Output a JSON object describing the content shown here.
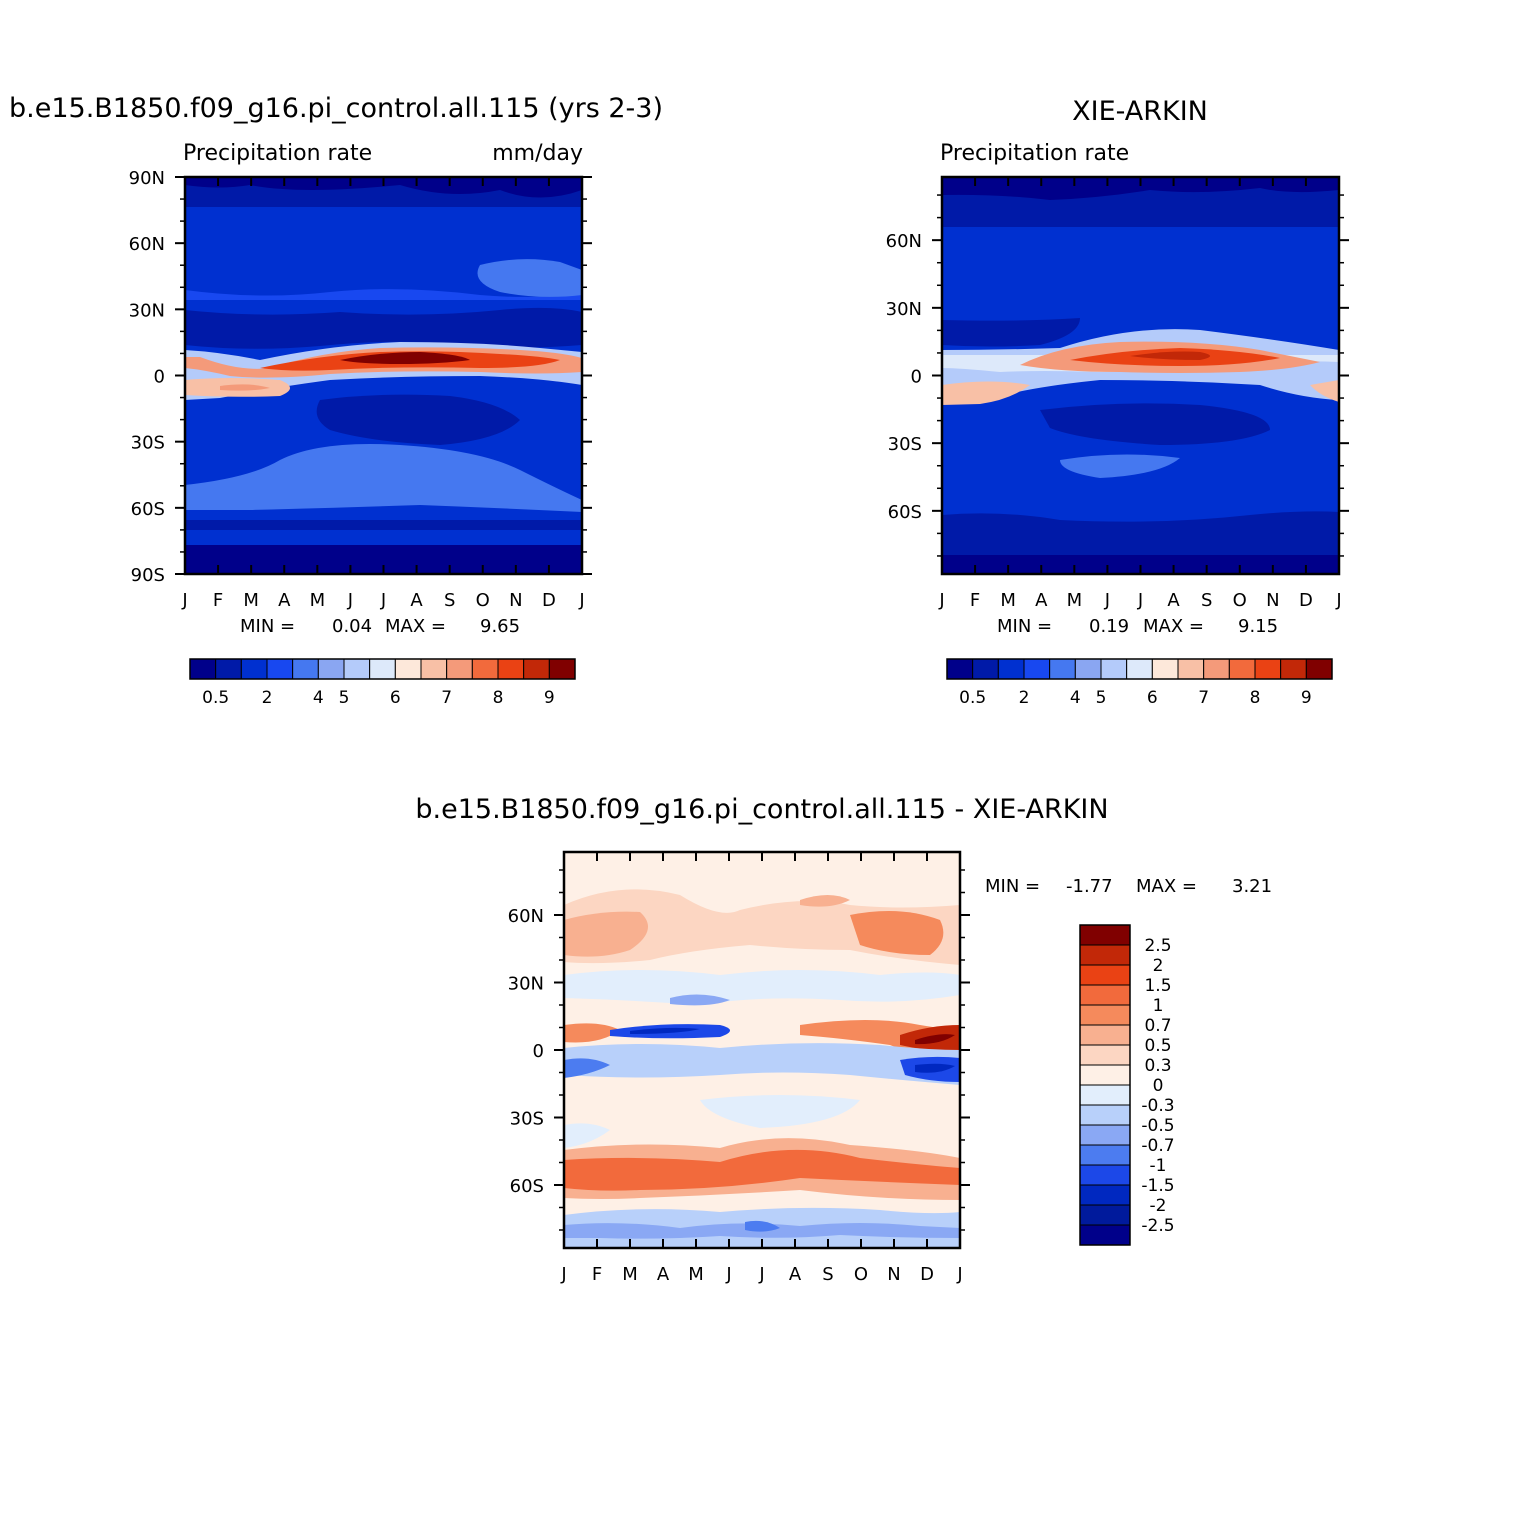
{
  "chart_data": [
    {
      "type": "heatmap",
      "title": "b.e15.B1850.f09_g16.pi_control.all.115 (yrs 2-3)",
      "subtitle_left": "Precipitation rate",
      "subtitle_right": "mm/day",
      "x_tick_labels": [
        "J",
        "F",
        "M",
        "A",
        "M",
        "J",
        "J",
        "A",
        "S",
        "O",
        "N",
        "D",
        "J"
      ],
      "y_tick_labels": [
        "90N",
        "60N",
        "30N",
        "0",
        "30S",
        "60S",
        "90S"
      ],
      "y_tick_values": [
        90,
        60,
        30,
        0,
        -30,
        -60,
        -90
      ],
      "ylim": [
        -90,
        90
      ],
      "min_label": "MIN =",
      "min_value": "0.04",
      "max_label": "MAX =",
      "max_value": "9.65",
      "colorbar_labels": [
        "0.5",
        "2",
        "4",
        "5",
        "6",
        "7",
        "8",
        "9"
      ],
      "palette": [
        "#00008a",
        "#001aa8",
        "#0030d0",
        "#1848f0",
        "#4578f0",
        "#8aa6f2",
        "#b4cbfa",
        "#dde9fa",
        "#fde8da",
        "#f8c0a6",
        "#f49a7a",
        "#f26a3c",
        "#ea4214",
        "#c22808",
        "#800000"
      ],
      "bands": [
        {
          "lat": 80,
          "value": 0.3
        },
        {
          "lat": 60,
          "value": 1.2
        },
        {
          "lat": 40,
          "value": 2.0
        },
        {
          "lat": 15,
          "value": 1.8
        },
        {
          "lat": 7,
          "value": 8.0,
          "seasonal_peak": "Jul-Aug"
        },
        {
          "lat": -7,
          "value": 6.0,
          "seasonal_peak": "Feb-Mar"
        },
        {
          "lat": -20,
          "value": 1.2
        },
        {
          "lat": -45,
          "value": 2.5
        },
        {
          "lat": -75,
          "value": 0.2
        }
      ]
    },
    {
      "type": "heatmap",
      "title": "XIE-ARKIN",
      "subtitle_left": "Precipitation rate",
      "x_tick_labels": [
        "J",
        "F",
        "M",
        "A",
        "M",
        "J",
        "J",
        "A",
        "S",
        "O",
        "N",
        "D",
        "J"
      ],
      "y_tick_labels": [
        "60N",
        "30N",
        "0",
        "30S",
        "60S"
      ],
      "y_tick_values": [
        60,
        30,
        0,
        -30,
        -60
      ],
      "ylim": [
        -88,
        88
      ],
      "min_label": "MIN =",
      "min_value": "0.19",
      "max_label": "MAX =",
      "max_value": "9.15",
      "colorbar_labels": [
        "0.5",
        "2",
        "4",
        "5",
        "6",
        "7",
        "8",
        "9"
      ],
      "palette": [
        "#00008a",
        "#001aa8",
        "#0030d0",
        "#1848f0",
        "#4578f0",
        "#8aa6f2",
        "#b4cbfa",
        "#dde9fa",
        "#fde8da",
        "#f8c0a6",
        "#f49a7a",
        "#f26a3c",
        "#ea4214",
        "#c22808",
        "#800000"
      ],
      "bands": [
        {
          "lat": 80,
          "value": 0.3
        },
        {
          "lat": 60,
          "value": 1.5
        },
        {
          "lat": 35,
          "value": 2.0
        },
        {
          "lat": 15,
          "value": 1.5
        },
        {
          "lat": 7,
          "value": 7.5,
          "seasonal_peak": "Jul-Aug"
        },
        {
          "lat": -7,
          "value": 5.5,
          "seasonal_peak": "Feb-Mar"
        },
        {
          "lat": -20,
          "value": 1.0
        },
        {
          "lat": -45,
          "value": 2.0
        },
        {
          "lat": -75,
          "value": 0.5
        }
      ]
    },
    {
      "type": "heatmap",
      "title": "b.e15.B1850.f09_g16.pi_control.all.115 - XIE-ARKIN",
      "x_tick_labels": [
        "J",
        "F",
        "M",
        "A",
        "M",
        "J",
        "J",
        "A",
        "S",
        "O",
        "N",
        "D",
        "J"
      ],
      "y_tick_labels": [
        "60N",
        "30N",
        "0",
        "30S",
        "60S"
      ],
      "y_tick_values": [
        60,
        30,
        0,
        -30,
        -60
      ],
      "ylim": [
        -88,
        88
      ],
      "min_label": "MIN =",
      "min_value": "-1.77",
      "max_label": "MAX =",
      "max_value": "3.21",
      "colorbar_labels": [
        "2.5",
        "2",
        "1.5",
        "1",
        "0.7",
        "0.5",
        "0.3",
        "0",
        "-0.3",
        "-0.5",
        "-0.7",
        "-1",
        "-1.5",
        "-2",
        "-2.5"
      ],
      "palette": [
        "#800000",
        "#c22808",
        "#ea4214",
        "#f26a3c",
        "#f58a5c",
        "#f8b090",
        "#fcd6c2",
        "#fef0e6",
        "#e2eefc",
        "#b8d0fa",
        "#8aa8f4",
        "#4c7cf0",
        "#1c48e8",
        "#0028c0",
        "#001a9c",
        "#00008a"
      ],
      "bands": [
        {
          "lat": 80,
          "value": 0.2
        },
        {
          "lat": 58,
          "value": 0.6
        },
        {
          "lat": 30,
          "value": -0.3
        },
        {
          "lat": 15,
          "value": 0.2
        },
        {
          "lat": 5,
          "value": 0.6
        },
        {
          "lat": -5,
          "value": -0.5
        },
        {
          "lat": -25,
          "value": 0.2
        },
        {
          "lat": -40,
          "value": 0.4
        },
        {
          "lat": -58,
          "value": 1.0
        },
        {
          "lat": -75,
          "value": -0.4
        }
      ]
    }
  ]
}
